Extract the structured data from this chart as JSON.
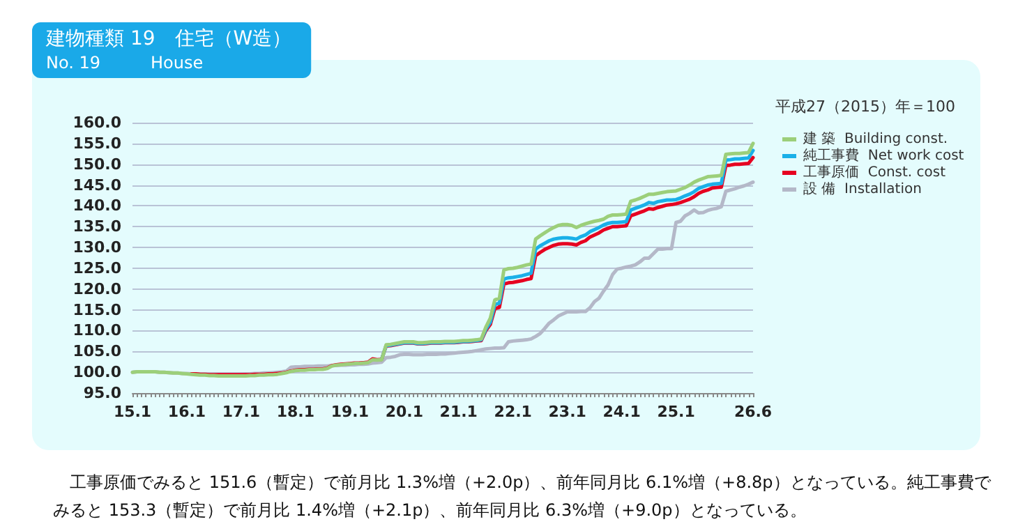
{
  "chart_data": {
    "type": "line",
    "title": "建物種類 19　住宅（W造）",
    "subtitle": "No. 19　　　House",
    "categories": [
      "15.1",
      null,
      null,
      null,
      null,
      null,
      null,
      null,
      null,
      null,
      null,
      null,
      "16.1",
      null,
      null,
      null,
      null,
      null,
      null,
      null,
      null,
      null,
      null,
      null,
      "17.1",
      null,
      null,
      null,
      null,
      null,
      null,
      null,
      null,
      null,
      null,
      null,
      "18.1",
      null,
      null,
      null,
      null,
      null,
      null,
      null,
      null,
      null,
      null,
      null,
      "19.1",
      null,
      null,
      null,
      null,
      null,
      null,
      null,
      null,
      null,
      null,
      null,
      "20.1",
      null,
      null,
      null,
      null,
      null,
      null,
      null,
      null,
      null,
      null,
      null,
      "21.1",
      null,
      null,
      null,
      null,
      null,
      null,
      null,
      null,
      null,
      null,
      null,
      "22.1",
      null,
      null,
      null,
      null,
      null,
      null,
      null,
      null,
      null,
      null,
      null,
      "23.1",
      null,
      null,
      null,
      null,
      null,
      null,
      null,
      null,
      null,
      null,
      null,
      "24.1",
      null,
      null,
      null,
      null,
      null,
      null,
      null,
      null,
      null,
      null,
      null,
      "25.1",
      null,
      null,
      null,
      null,
      null,
      null,
      null,
      null,
      null,
      null,
      null,
      null,
      null,
      null,
      null,
      null,
      "26.6"
    ],
    "series": [
      {
        "name": "設 備  Installation",
        "color": "#b4b8c8",
        "values": [
          100.0,
          100.1,
          100.1,
          100.1,
          100.1,
          100.1,
          100.0,
          100.0,
          99.9,
          99.8,
          99.8,
          99.7,
          99.7,
          99.6,
          99.6,
          99.5,
          99.5,
          99.4,
          99.4,
          99.4,
          99.4,
          99.4,
          99.4,
          99.4,
          99.5,
          99.6,
          99.6,
          99.7,
          99.7,
          99.8,
          99.8,
          99.9,
          100.0,
          100.1,
          100.3,
          101.2,
          101.3,
          101.3,
          101.4,
          101.4,
          101.4,
          101.5,
          101.5,
          101.5,
          101.6,
          101.6,
          101.7,
          101.7,
          101.8,
          101.8,
          101.9,
          101.9,
          102.0,
          102.2,
          102.3,
          102.4,
          103.5,
          103.6,
          103.8,
          104.2,
          104.3,
          104.3,
          104.2,
          104.2,
          104.2,
          104.3,
          104.3,
          104.3,
          104.4,
          104.4,
          104.5,
          104.6,
          104.7,
          104.8,
          104.9,
          105.0,
          105.2,
          105.4,
          105.6,
          105.7,
          105.8,
          105.8,
          105.9,
          107.3,
          107.5,
          107.6,
          107.7,
          107.8,
          108.0,
          108.6,
          109.3,
          110.5,
          111.8,
          112.6,
          113.5,
          114.0,
          114.5,
          114.5,
          114.5,
          114.6,
          114.6,
          115.5,
          117.0,
          117.8,
          119.5,
          121.0,
          123.5,
          124.8,
          125.0,
          125.3,
          125.5,
          125.8,
          126.5,
          127.4,
          127.4,
          128.5,
          129.6,
          129.6,
          129.7,
          129.7,
          136.0,
          136.3,
          137.6,
          138.2,
          139.0,
          138.3,
          138.4,
          138.9,
          139.2,
          139.4,
          139.8,
          143.5,
          143.8,
          144.1,
          144.5,
          144.8,
          145.2,
          145.7
        ]
      },
      {
        "name": "工事原価  Const. cost",
        "color": "#e60020",
        "values": [
          null,
          null,
          null,
          null,
          null,
          null,
          null,
          null,
          null,
          null,
          null,
          null,
          null,
          99.6,
          99.6,
          99.5,
          99.5,
          99.4,
          99.4,
          99.4,
          99.4,
          99.4,
          99.4,
          99.4,
          99.4,
          99.4,
          99.4,
          99.5,
          99.5,
          99.5,
          99.6,
          99.6,
          99.7,
          99.8,
          100.0,
          100.3,
          100.5,
          100.6,
          100.6,
          100.7,
          100.7,
          100.8,
          100.8,
          101.0,
          101.6,
          101.8,
          101.9,
          102.0,
          102.1,
          102.2,
          102.2,
          102.3,
          102.4,
          103.2,
          103.0,
          103.1,
          106.3,
          106.4,
          106.6,
          106.8,
          107.0,
          107.0,
          107.0,
          106.8,
          106.8,
          106.9,
          107.0,
          107.0,
          107.0,
          107.1,
          107.1,
          107.1,
          107.2,
          107.3,
          107.3,
          107.4,
          107.5,
          107.6,
          110.0,
          111.5,
          115.3,
          115.6,
          121.2,
          121.5,
          121.6,
          121.8,
          122.0,
          122.3,
          122.5,
          128.0,
          128.8,
          129.5,
          130.0,
          130.5,
          130.8,
          130.9,
          130.9,
          130.8,
          130.6,
          131.2,
          131.6,
          132.5,
          133.0,
          133.5,
          134.2,
          134.6,
          135.0,
          135.0,
          135.1,
          135.2,
          137.6,
          138.0,
          138.4,
          138.8,
          139.3,
          139.2,
          139.6,
          139.9,
          140.2,
          140.3,
          140.5,
          140.8,
          141.2,
          141.6,
          142.2,
          143.0,
          143.5,
          143.8,
          144.3,
          144.4,
          144.5,
          149.7,
          149.8,
          150.0,
          150.0,
          150.1,
          150.2,
          151.6
        ]
      },
      {
        "name": "純工事費  Net work cost",
        "color": "#1ab0e8",
        "values": [
          null,
          null,
          null,
          null,
          null,
          null,
          null,
          null,
          null,
          null,
          null,
          null,
          null,
          null,
          null,
          null,
          null,
          null,
          null,
          null,
          null,
          null,
          null,
          null,
          null,
          null,
          null,
          null,
          null,
          null,
          null,
          null,
          null,
          null,
          null,
          null,
          null,
          null,
          null,
          null,
          null,
          null,
          null,
          null,
          null,
          null,
          null,
          null,
          null,
          null,
          null,
          null,
          null,
          null,
          null,
          103.1,
          106.4,
          106.5,
          106.7,
          106.9,
          107.1,
          107.1,
          107.1,
          106.9,
          106.9,
          107.0,
          107.1,
          107.1,
          107.1,
          107.2,
          107.2,
          107.2,
          107.3,
          107.4,
          107.4,
          107.5,
          107.6,
          107.8,
          110.3,
          112.0,
          116.3,
          116.6,
          122.4,
          122.7,
          122.8,
          123.0,
          123.2,
          123.5,
          123.8,
          129.6,
          130.4,
          131.0,
          131.6,
          132.0,
          132.2,
          132.3,
          132.3,
          132.2,
          132.0,
          132.6,
          133.0,
          133.8,
          134.3,
          134.8,
          135.4,
          135.8,
          136.0,
          136.0,
          136.1,
          136.2,
          139.0,
          139.4,
          139.8,
          140.2,
          140.8,
          140.6,
          141.0,
          141.2,
          141.4,
          141.4,
          141.5,
          141.9,
          142.4,
          142.8,
          143.4,
          144.2,
          144.6,
          145.0,
          145.2,
          145.3,
          145.4,
          151.0,
          151.1,
          151.3,
          151.3,
          151.4,
          151.5,
          153.3
        ]
      },
      {
        "name": "建 築  Building const.",
        "color": "#9ccf7a",
        "values": [
          100.0,
          100.1,
          100.1,
          100.1,
          100.1,
          100.1,
          100.0,
          100.0,
          99.9,
          99.8,
          99.8,
          99.7,
          99.6,
          99.5,
          99.4,
          99.3,
          99.3,
          99.2,
          99.2,
          99.1,
          99.1,
          99.1,
          99.1,
          99.1,
          99.1,
          99.1,
          99.2,
          99.2,
          99.3,
          99.3,
          99.4,
          99.4,
          99.5,
          99.7,
          99.9,
          100.2,
          100.4,
          100.5,
          100.5,
          100.6,
          100.6,
          100.7,
          100.7,
          100.9,
          101.5,
          101.7,
          101.8,
          101.9,
          102.0,
          102.1,
          102.1,
          102.2,
          102.3,
          103.0,
          102.9,
          103.0,
          106.6,
          106.7,
          106.9,
          107.1,
          107.3,
          107.3,
          107.3,
          107.1,
          107.1,
          107.2,
          107.3,
          107.3,
          107.3,
          107.4,
          107.4,
          107.4,
          107.5,
          107.6,
          107.6,
          107.7,
          107.8,
          108.0,
          110.8,
          113.0,
          117.4,
          117.8,
          124.6,
          124.9,
          125.0,
          125.2,
          125.5,
          125.8,
          126.0,
          132.0,
          132.8,
          133.5,
          134.2,
          134.8,
          135.3,
          135.5,
          135.5,
          135.3,
          134.8,
          135.3,
          135.7,
          136.0,
          136.3,
          136.5,
          136.8,
          137.5,
          137.8,
          137.8,
          137.9,
          138.0,
          141.1,
          141.4,
          141.8,
          142.3,
          142.8,
          142.8,
          143.0,
          143.2,
          143.4,
          143.5,
          143.6,
          144.0,
          144.4,
          145.0,
          145.7,
          146.2,
          146.6,
          147.0,
          147.1,
          147.2,
          147.3,
          152.4,
          152.5,
          152.6,
          152.6,
          152.7,
          152.8,
          155.0
        ]
      }
    ],
    "ylim": [
      95,
      160
    ],
    "yticks": [
      {
        "value": 95,
        "label": "95.0"
      },
      {
        "value": 100,
        "label": "100.0"
      },
      {
        "value": 105,
        "label": "105.0"
      },
      {
        "value": 110,
        "label": "110.0"
      },
      {
        "value": 115,
        "label": "115.0"
      },
      {
        "value": 120,
        "label": "120.0"
      },
      {
        "value": 125,
        "label": "125.0"
      },
      {
        "value": 130,
        "label": "130.0"
      },
      {
        "value": 135,
        "label": "135.0"
      },
      {
        "value": 140,
        "label": "140.0"
      },
      {
        "value": 145,
        "label": "145.0"
      },
      {
        "value": 150,
        "label": "150.0"
      },
      {
        "value": 155,
        "label": "155.0"
      },
      {
        "value": 160,
        "label": "160.0"
      }
    ],
    "grid": "y",
    "legend": "right",
    "marker": "none",
    "line_style": "solid",
    "annotations": [
      "平成27（2015）年＝100",
      "　工事原価でみると 151.6（暫定）で前月比 1.3%増（+2.0p）、前年同月比 6.1%増（+8.8p）となっている。純工事費でみると 153.3（暫定）で前月比 1.4%増（+2.1p）、前年同月比 6.3%増（+9.0p）となっている。"
    ]
  }
}
